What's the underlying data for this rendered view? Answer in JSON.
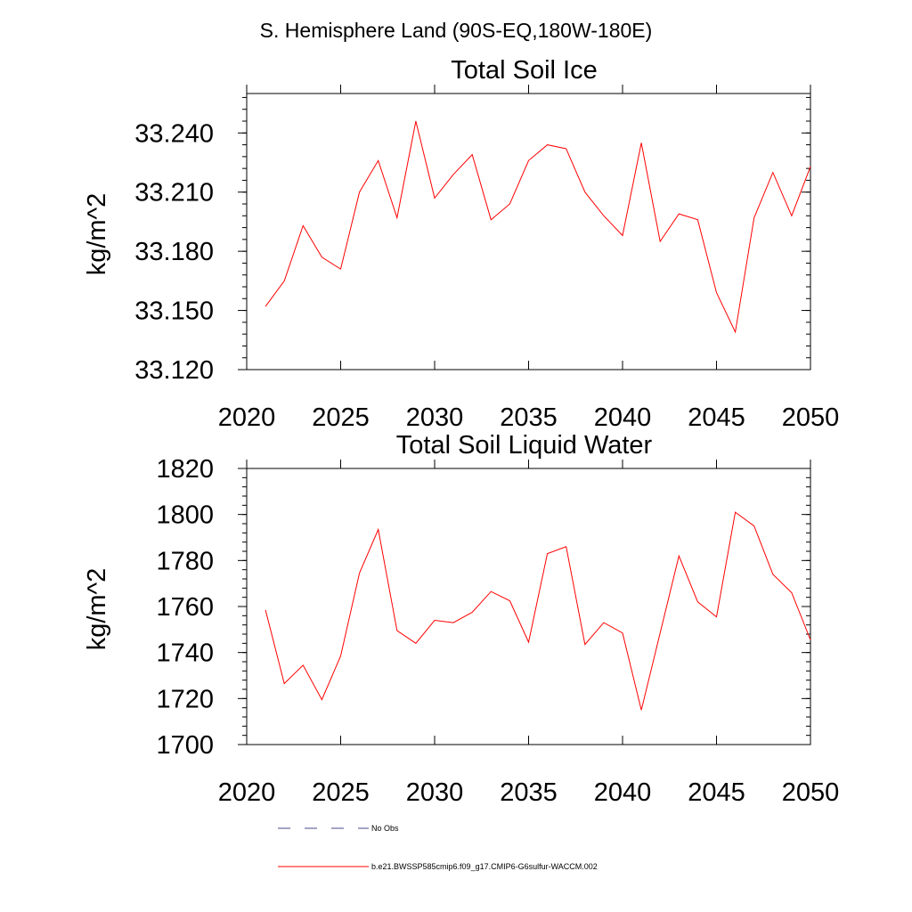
{
  "page_title": "S. Hemisphere Land (90S-EQ,180W-180E)",
  "chart_data": [
    {
      "type": "line",
      "title": "Total Soil Ice",
      "xlabel": "",
      "ylabel": "kg/m^2",
      "xlim": [
        2020,
        2050
      ],
      "ylim": [
        33.12,
        33.26
      ],
      "x_ticks": [
        2020,
        2025,
        2030,
        2035,
        2040,
        2045,
        2050
      ],
      "y_ticks": [
        33.12,
        33.15,
        33.18,
        33.21,
        33.24
      ],
      "y_tick_labels": [
        "33.120",
        "33.150",
        "33.180",
        "33.210",
        "33.240"
      ],
      "grid": false,
      "series": [
        {
          "name": "b.e21.BWSSP585cmip6.f09_g17.CMIP6-G6sulfur-WACCM.002",
          "color": "#ff0000",
          "x": [
            2021,
            2022,
            2023,
            2024,
            2025,
            2026,
            2027,
            2028,
            2029,
            2030,
            2031,
            2032,
            2033,
            2034,
            2035,
            2036,
            2037,
            2038,
            2039,
            2040,
            2041,
            2042,
            2043,
            2044,
            2045,
            2046,
            2047,
            2048,
            2049,
            2050
          ],
          "values": [
            33.152,
            33.165,
            33.193,
            33.177,
            33.171,
            33.21,
            33.226,
            33.197,
            33.246,
            33.207,
            33.219,
            33.229,
            33.196,
            33.204,
            33.226,
            33.234,
            33.232,
            33.21,
            33.198,
            33.188,
            33.235,
            33.185,
            33.199,
            33.196,
            33.159,
            33.139,
            33.197,
            33.22,
            33.198,
            33.223
          ]
        }
      ]
    },
    {
      "type": "line",
      "title": "Total Soil Liquid Water",
      "xlabel": "",
      "ylabel": "kg/m^2",
      "xlim": [
        2020,
        2050
      ],
      "ylim": [
        1700,
        1820
      ],
      "x_ticks": [
        2020,
        2025,
        2030,
        2035,
        2040,
        2045,
        2050
      ],
      "y_ticks": [
        1700,
        1720,
        1740,
        1760,
        1780,
        1800,
        1820
      ],
      "y_tick_labels": [
        "1700",
        "1720",
        "1740",
        "1760",
        "1780",
        "1800",
        "1820"
      ],
      "grid": false,
      "series": [
        {
          "name": "b.e21.BWSSP585cmip6.f09_g17.CMIP6-G6sulfur-WACCM.002",
          "color": "#ff0000",
          "x": [
            2021,
            2022,
            2023,
            2024,
            2025,
            2026,
            2027,
            2028,
            2029,
            2030,
            2031,
            2032,
            2033,
            2034,
            2035,
            2036,
            2037,
            2038,
            2039,
            2040,
            2041,
            2042,
            2043,
            2044,
            2045,
            2046,
            2047,
            2048,
            2049,
            2050
          ],
          "values": [
            1758.5,
            1726.5,
            1734.5,
            1719.5,
            1738.5,
            1774.5,
            1793.5,
            1749.5,
            1744,
            1754,
            1753,
            1757.5,
            1766.5,
            1762.5,
            1744.5,
            1783,
            1786,
            1743.5,
            1753,
            1748.5,
            1715,
            1748.5,
            1782,
            1762,
            1755.5,
            1801,
            1795,
            1774,
            1766,
            1745.5
          ]
        }
      ]
    }
  ],
  "legend": {
    "placement": "bottom",
    "items": [
      {
        "label": "No Obs",
        "style": "dashed",
        "color": "#4a4a8a"
      },
      {
        "label": "b.e21.BWSSP585cmip6.f09_g17.CMIP6-G6sulfur-WACCM.002",
        "style": "solid",
        "color": "#ff0000"
      }
    ]
  }
}
